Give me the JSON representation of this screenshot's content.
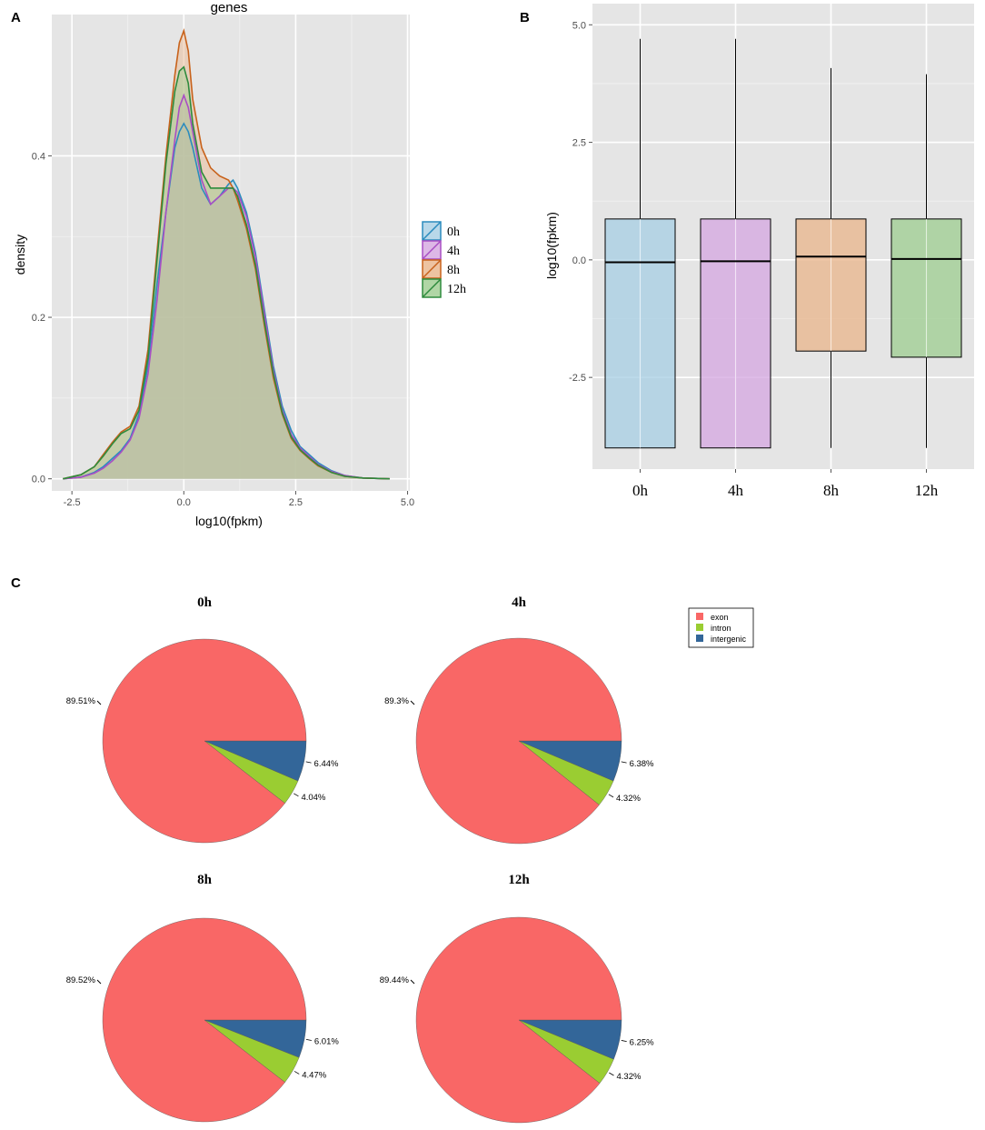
{
  "colors": {
    "panel_bg": "#e5e5e5",
    "grid": "#ffffff",
    "s0h_line": "#2b8cbe",
    "s0h_fill": "#a6cee3",
    "s4h_line": "#a94ec4",
    "s4h_fill": "#d4a6e0",
    "s8h_line": "#c8621b",
    "s8h_fill": "#e8b48a",
    "s12h_line": "#2e8b3d",
    "s12h_fill": "#9ccc8f",
    "exon": "#f96766",
    "intron": "#9acd32",
    "intergenic": "#336699"
  },
  "chart_data": [
    {
      "panel": "A",
      "type": "area",
      "title": "genes",
      "xlabel": "log10(fpkm)",
      "ylabel": "density",
      "xlim": [
        -2.95,
        5.05
      ],
      "ylim": [
        -0.015,
        0.575
      ],
      "xticks": [
        -2.5,
        0.0,
        2.5,
        5.0
      ],
      "xtick_labels": [
        "-2.5",
        "0.0",
        "2.5",
        "5.0"
      ],
      "yticks": [
        0.0,
        0.2,
        0.4
      ],
      "ytick_labels": [
        "0.0",
        "0.2",
        "0.4"
      ],
      "x": [
        -2.7,
        -2.3,
        -2.0,
        -1.8,
        -1.6,
        -1.4,
        -1.2,
        -1.0,
        -0.8,
        -0.6,
        -0.4,
        -0.2,
        -0.1,
        0.0,
        0.1,
        0.2,
        0.4,
        0.6,
        0.8,
        1.0,
        1.1,
        1.2,
        1.4,
        1.6,
        1.8,
        2.0,
        2.2,
        2.4,
        2.6,
        2.8,
        3.0,
        3.3,
        3.6,
        4.0,
        4.6
      ],
      "series": [
        {
          "name": "0h",
          "values": [
            0.0,
            0.002,
            0.008,
            0.015,
            0.025,
            0.035,
            0.05,
            0.08,
            0.14,
            0.24,
            0.33,
            0.41,
            0.43,
            0.44,
            0.43,
            0.41,
            0.36,
            0.34,
            0.35,
            0.365,
            0.37,
            0.36,
            0.33,
            0.28,
            0.21,
            0.14,
            0.09,
            0.06,
            0.04,
            0.03,
            0.02,
            0.01,
            0.004,
            0.001,
            0.0
          ]
        },
        {
          "name": "4h",
          "values": [
            0.0,
            0.002,
            0.007,
            0.013,
            0.022,
            0.033,
            0.048,
            0.075,
            0.13,
            0.22,
            0.33,
            0.42,
            0.46,
            0.475,
            0.46,
            0.43,
            0.37,
            0.34,
            0.35,
            0.36,
            0.36,
            0.355,
            0.325,
            0.275,
            0.205,
            0.135,
            0.085,
            0.055,
            0.038,
            0.028,
            0.018,
            0.009,
            0.004,
            0.001,
            0.0
          ]
        },
        {
          "name": "8h",
          "values": [
            0.0,
            0.005,
            0.015,
            0.03,
            0.045,
            0.058,
            0.065,
            0.09,
            0.16,
            0.28,
            0.4,
            0.5,
            0.54,
            0.555,
            0.53,
            0.47,
            0.41,
            0.385,
            0.375,
            0.37,
            0.36,
            0.345,
            0.31,
            0.26,
            0.19,
            0.125,
            0.08,
            0.05,
            0.035,
            0.025,
            0.016,
            0.008,
            0.003,
            0.001,
            0.0
          ]
        },
        {
          "name": "12h",
          "values": [
            0.0,
            0.005,
            0.015,
            0.028,
            0.043,
            0.056,
            0.062,
            0.085,
            0.15,
            0.27,
            0.39,
            0.48,
            0.505,
            0.51,
            0.49,
            0.44,
            0.38,
            0.36,
            0.36,
            0.36,
            0.36,
            0.35,
            0.315,
            0.265,
            0.195,
            0.13,
            0.082,
            0.052,
            0.036,
            0.026,
            0.017,
            0.008,
            0.003,
            0.001,
            0.0
          ]
        }
      ],
      "legend": [
        "0h",
        "4h",
        "8h",
        "12h"
      ],
      "legend_position": "right"
    },
    {
      "panel": "B",
      "type": "box",
      "ylabel": "log10(fpkm)",
      "categories": [
        "0h",
        "4h",
        "8h",
        "12h"
      ],
      "ylim": [
        -4.45,
        5.45
      ],
      "yticks": [
        -2.5,
        0.0,
        2.5,
        5.0
      ],
      "ytick_labels": [
        "-2.5",
        "0.0",
        "2.5",
        "5.0"
      ],
      "boxes": [
        {
          "name": "0h",
          "min": -4.0,
          "q1": -4.0,
          "median": -0.05,
          "q3": 0.87,
          "max": 4.7
        },
        {
          "name": "4h",
          "min": -4.0,
          "q1": -4.0,
          "median": -0.03,
          "q3": 0.87,
          "max": 4.7
        },
        {
          "name": "8h",
          "min": -4.0,
          "q1": -1.94,
          "median": 0.07,
          "q3": 0.87,
          "max": 4.08
        },
        {
          "name": "12h",
          "min": -4.0,
          "q1": -2.07,
          "median": 0.02,
          "q3": 0.87,
          "max": 3.95
        }
      ]
    },
    {
      "panel": "C",
      "type": "pie",
      "legend": [
        "exon",
        "intron",
        "intergenic"
      ],
      "legend_position": "top-right",
      "pies": [
        {
          "title": "0h",
          "slices": [
            {
              "name": "exon",
              "value": 89.51,
              "label": "89.51%"
            },
            {
              "name": "intron",
              "value": 4.04,
              "label": "4.04%"
            },
            {
              "name": "intergenic",
              "value": 6.44,
              "label": "6.44%"
            }
          ]
        },
        {
          "title": "4h",
          "slices": [
            {
              "name": "exon",
              "value": 89.3,
              "label": "89.3%"
            },
            {
              "name": "intron",
              "value": 4.32,
              "label": "4.32%"
            },
            {
              "name": "intergenic",
              "value": 6.38,
              "label": "6.38%"
            }
          ]
        },
        {
          "title": "8h",
          "slices": [
            {
              "name": "exon",
              "value": 89.52,
              "label": "89.52%"
            },
            {
              "name": "intron",
              "value": 4.47,
              "label": "4.47%"
            },
            {
              "name": "intergenic",
              "value": 6.01,
              "label": "6.01%"
            }
          ]
        },
        {
          "title": "12h",
          "slices": [
            {
              "name": "exon",
              "value": 89.44,
              "label": "89.44%"
            },
            {
              "name": "intron",
              "value": 4.32,
              "label": "4.32%"
            },
            {
              "name": "intergenic",
              "value": 6.25,
              "label": "6.25%"
            }
          ]
        }
      ]
    }
  ],
  "panel_labels": [
    "A",
    "B",
    "C"
  ]
}
